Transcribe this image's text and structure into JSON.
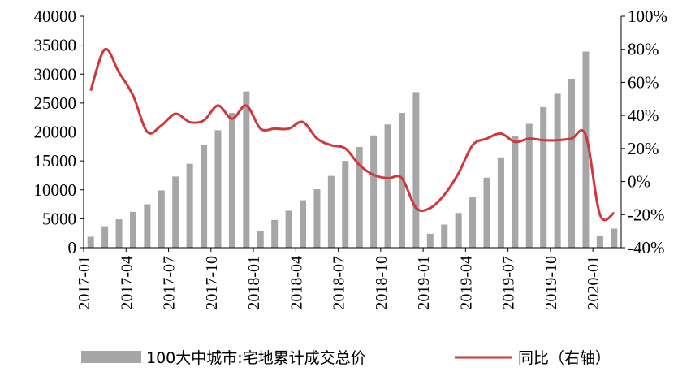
{
  "chart_data": {
    "type": "bar+line",
    "categories": [
      "2017-01",
      "2017-02",
      "2017-03",
      "2017-04",
      "2017-05",
      "2017-06",
      "2017-07",
      "2017-08",
      "2017-09",
      "2017-10",
      "2017-11",
      "2017-12",
      "2018-01",
      "2018-02",
      "2018-03",
      "2018-04",
      "2018-05",
      "2018-06",
      "2018-07",
      "2018-08",
      "2018-09",
      "2018-10",
      "2018-11",
      "2018-12",
      "2019-01",
      "2019-02",
      "2019-03",
      "2019-04",
      "2019-05",
      "2019-06",
      "2019-07",
      "2019-08",
      "2019-09",
      "2019-10",
      "2019-11",
      "2019-12",
      "2020-01",
      "2020-02"
    ],
    "x_tick_labels": [
      "2017-01",
      "2017-04",
      "2017-07",
      "2017-10",
      "2018-01",
      "2018-04",
      "2018-07",
      "2018-10",
      "2019-01",
      "2019-04",
      "2019-07",
      "2019-10",
      "2020-01"
    ],
    "series": [
      {
        "name": "100大中城市:宅地累计成交总价",
        "type": "bar",
        "axis": "left",
        "color": "#a6a6a6",
        "values": [
          1900,
          3700,
          4900,
          6200,
          7500,
          9900,
          12300,
          14500,
          17700,
          20300,
          23300,
          27000,
          2800,
          4800,
          6400,
          8200,
          10100,
          12400,
          15000,
          17400,
          19400,
          21300,
          23300,
          26900,
          2400,
          4000,
          6000,
          8800,
          12100,
          15600,
          19300,
          21400,
          24300,
          26600,
          29200,
          33900,
          2000,
          3300
        ]
      },
      {
        "name": "同比（右轴）",
        "type": "line",
        "axis": "right",
        "color": "#d0373a",
        "values": [
          55,
          80,
          66,
          52,
          30,
          34,
          41,
          36,
          37,
          46,
          38,
          46,
          32,
          32,
          32,
          36,
          26,
          22,
          20,
          10,
          4,
          2,
          2,
          -16,
          -16,
          -8,
          5,
          22,
          26,
          29,
          24,
          26,
          25,
          25,
          26,
          28,
          -20,
          -19
        ]
      }
    ],
    "y_left": {
      "min": 0,
      "max": 40000,
      "ticks": [
        "0",
        "5000",
        "10000",
        "15000",
        "20000",
        "25000",
        "30000",
        "35000",
        "40000"
      ]
    },
    "y_right": {
      "min": -40,
      "max": 100,
      "ticks": [
        "-40%",
        "-20%",
        "0%",
        "20%",
        "40%",
        "60%",
        "80%",
        "100%"
      ]
    },
    "grid": false,
    "legend_position": "bottom"
  }
}
